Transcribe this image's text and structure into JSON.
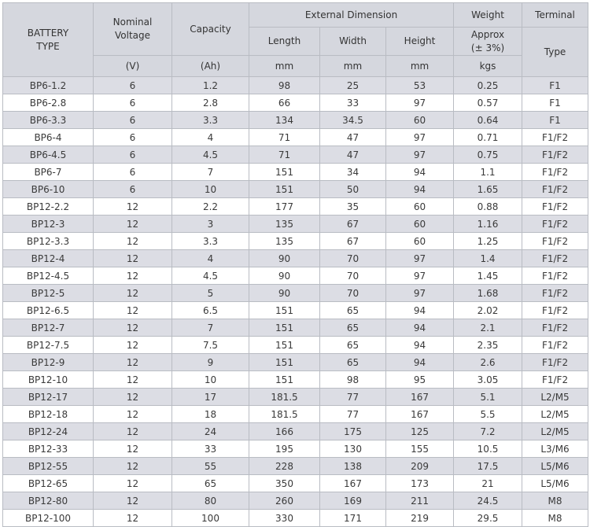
{
  "header": {
    "battery_type_line1": "BATTERY",
    "battery_type_line2": "TYPE",
    "nominal_voltage_line1": "Nominal",
    "nominal_voltage_line2": "Voltage",
    "capacity": "Capacity",
    "external_dimension": "External Dimension",
    "weight": "Weight",
    "terminal": "Terminal",
    "length": "Length",
    "width": "Width",
    "height": "Height",
    "approx_line1": "Approx",
    "approx_line2": "(± 3%)",
    "terminal_type": "Type",
    "unit_voltage": "(V)",
    "unit_capacity": "(Ah)",
    "unit_length": "mm",
    "unit_width": "mm",
    "unit_height": "mm",
    "unit_weight": "kgs"
  },
  "rows": [
    {
      "type": "BP6-1.2",
      "voltage": "6",
      "capacity": "1.2",
      "length": "98",
      "width": "25",
      "height": "53",
      "weight": "0.25",
      "terminal": "F1"
    },
    {
      "type": "BP6-2.8",
      "voltage": "6",
      "capacity": "2.8",
      "length": "66",
      "width": "33",
      "height": "97",
      "weight": "0.57",
      "terminal": "F1"
    },
    {
      "type": "BP6-3.3",
      "voltage": "6",
      "capacity": "3.3",
      "length": "134",
      "width": "34.5",
      "height": "60",
      "weight": "0.64",
      "terminal": "F1"
    },
    {
      "type": "BP6-4",
      "voltage": "6",
      "capacity": "4",
      "length": "71",
      "width": "47",
      "height": "97",
      "weight": "0.71",
      "terminal": "F1/F2"
    },
    {
      "type": "BP6-4.5",
      "voltage": "6",
      "capacity": "4.5",
      "length": "71",
      "width": "47",
      "height": "97",
      "weight": "0.75",
      "terminal": "F1/F2"
    },
    {
      "type": "BP6-7",
      "voltage": "6",
      "capacity": "7",
      "length": "151",
      "width": "34",
      "height": "94",
      "weight": "1.1",
      "terminal": "F1/F2"
    },
    {
      "type": "BP6-10",
      "voltage": "6",
      "capacity": "10",
      "length": "151",
      "width": "50",
      "height": "94",
      "weight": "1.65",
      "terminal": "F1/F2"
    },
    {
      "type": "BP12-2.2",
      "voltage": "12",
      "capacity": "2.2",
      "length": "177",
      "width": "35",
      "height": "60",
      "weight": "0.88",
      "terminal": "F1/F2"
    },
    {
      "type": "BP12-3",
      "voltage": "12",
      "capacity": "3",
      "length": "135",
      "width": "67",
      "height": "60",
      "weight": "1.16",
      "terminal": "F1/F2"
    },
    {
      "type": "BP12-3.3",
      "voltage": "12",
      "capacity": "3.3",
      "length": "135",
      "width": "67",
      "height": "60",
      "weight": "1.25",
      "terminal": "F1/F2"
    },
    {
      "type": "BP12-4",
      "voltage": "12",
      "capacity": "4",
      "length": "90",
      "width": "70",
      "height": "97",
      "weight": "1.4",
      "terminal": "F1/F2"
    },
    {
      "type": "BP12-4.5",
      "voltage": "12",
      "capacity": "4.5",
      "length": "90",
      "width": "70",
      "height": "97",
      "weight": "1.45",
      "terminal": "F1/F2"
    },
    {
      "type": "BP12-5",
      "voltage": "12",
      "capacity": "5",
      "length": "90",
      "width": "70",
      "height": "97",
      "weight": "1.68",
      "terminal": "F1/F2"
    },
    {
      "type": "BP12-6.5",
      "voltage": "12",
      "capacity": "6.5",
      "length": "151",
      "width": "65",
      "height": "94",
      "weight": "2.02",
      "terminal": "F1/F2"
    },
    {
      "type": "BP12-7",
      "voltage": "12",
      "capacity": "7",
      "length": "151",
      "width": "65",
      "height": "94",
      "weight": "2.1",
      "terminal": "F1/F2"
    },
    {
      "type": "BP12-7.5",
      "voltage": "12",
      "capacity": "7.5",
      "length": "151",
      "width": "65",
      "height": "94",
      "weight": "2.35",
      "terminal": "F1/F2"
    },
    {
      "type": "BP12-9",
      "voltage": "12",
      "capacity": "9",
      "length": "151",
      "width": "65",
      "height": "94",
      "weight": "2.6",
      "terminal": "F1/F2"
    },
    {
      "type": "BP12-10",
      "voltage": "12",
      "capacity": "10",
      "length": "151",
      "width": "98",
      "height": "95",
      "weight": "3.05",
      "terminal": "F1/F2"
    },
    {
      "type": "BP12-17",
      "voltage": "12",
      "capacity": "17",
      "length": "181.5",
      "width": "77",
      "height": "167",
      "weight": "5.1",
      "terminal": "L2/M5"
    },
    {
      "type": "BP12-18",
      "voltage": "12",
      "capacity": "18",
      "length": "181.5",
      "width": "77",
      "height": "167",
      "weight": "5.5",
      "terminal": "L2/M5"
    },
    {
      "type": "BP12-24",
      "voltage": "12",
      "capacity": "24",
      "length": "166",
      "width": "175",
      "height": "125",
      "weight": "7.2",
      "terminal": "L2/M5"
    },
    {
      "type": "BP12-33",
      "voltage": "12",
      "capacity": "33",
      "length": "195",
      "width": "130",
      "height": "155",
      "weight": "10.5",
      "terminal": "L3/M6"
    },
    {
      "type": "BP12-55",
      "voltage": "12",
      "capacity": "55",
      "length": "228",
      "width": "138",
      "height": "209",
      "weight": "17.5",
      "terminal": "L5/M6"
    },
    {
      "type": "BP12-65",
      "voltage": "12",
      "capacity": "65",
      "length": "350",
      "width": "167",
      "height": "173",
      "weight": "21",
      "terminal": "L5/M6"
    },
    {
      "type": "BP12-80",
      "voltage": "12",
      "capacity": "80",
      "length": "260",
      "width": "169",
      "height": "211",
      "weight": "24.5",
      "terminal": "M8"
    },
    {
      "type": "BP12-100",
      "voltage": "12",
      "capacity": "100",
      "length": "330",
      "width": "171",
      "height": "219",
      "weight": "29.5",
      "terminal": "M8"
    }
  ]
}
